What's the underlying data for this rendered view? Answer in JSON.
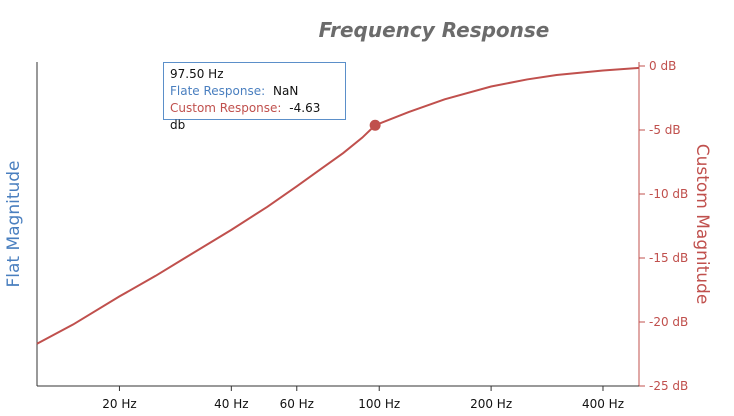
{
  "chart_data": {
    "type": "line",
    "title": "Frequency Response",
    "xscale": "log",
    "xlim": [
      12,
      500
    ],
    "x_ticks": [
      {
        "value": 20,
        "label": "20 Hz"
      },
      {
        "value": 40,
        "label": "40 Hz"
      },
      {
        "value": 60,
        "label": "60 Hz"
      },
      {
        "value": 100,
        "label": "100 Hz"
      },
      {
        "value": 200,
        "label": "200 Hz"
      },
      {
        "value": 400,
        "label": "400 Hz"
      }
    ],
    "y_left": {
      "label": "Flat Magnitude"
    },
    "y_right": {
      "label": "Custom Magnitude",
      "ylim": [
        -25,
        0
      ],
      "ticks": [
        {
          "value": 0,
          "label": "0 dB"
        },
        {
          "value": -5,
          "label": "-5 dB"
        },
        {
          "value": -10,
          "label": "-10 dB"
        },
        {
          "value": -15,
          "label": "-15 dB"
        },
        {
          "value": -20,
          "label": "-20 dB"
        },
        {
          "value": -25,
          "label": "-25 dB"
        }
      ]
    },
    "series": [
      {
        "name": "Custom Response",
        "color": "#c0504d",
        "x": [
          12,
          15,
          20,
          25,
          30,
          40,
          50,
          60,
          70,
          80,
          90,
          97.5,
          120,
          150,
          200,
          250,
          300,
          400,
          500
        ],
        "y": [
          -21.7,
          -20.2,
          -18.0,
          -16.4,
          -15.0,
          -12.8,
          -11.0,
          -9.4,
          -8.0,
          -6.8,
          -5.6,
          -4.63,
          -3.6,
          -2.6,
          -1.6,
          -1.05,
          -0.7,
          -0.35,
          -0.15
        ]
      },
      {
        "name": "Flate Response",
        "color": "#4a7fbf",
        "x": [],
        "y": []
      }
    ],
    "highlight": {
      "x": 97.5,
      "y": -4.63
    },
    "tooltip": {
      "header": "97.50 Hz",
      "rows": [
        {
          "label": "Flate Response:",
          "value": "NaN"
        },
        {
          "label": "Custom Response:",
          "value": "-4.63 db"
        }
      ]
    },
    "colors": {
      "left_axis": "#4a7fbf",
      "right_axis": "#c0504d",
      "title": "#6b6b6b"
    }
  }
}
